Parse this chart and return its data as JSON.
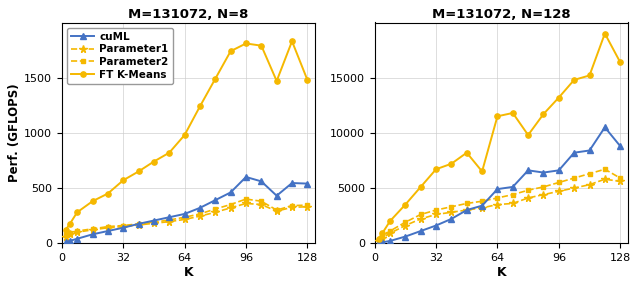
{
  "title_left": "M=131072, N=8",
  "title_right": "M=131072, N=128",
  "xlabel": "K",
  "ylabel": "Perf. (GFLOPS)",
  "k_values": [
    2,
    4,
    8,
    16,
    24,
    32,
    40,
    48,
    56,
    64,
    72,
    80,
    88,
    96,
    104,
    112,
    120,
    128
  ],
  "left": {
    "cuML": [
      10,
      20,
      40,
      80,
      110,
      140,
      175,
      205,
      235,
      265,
      320,
      390,
      460,
      600,
      560,
      430,
      545,
      540
    ],
    "Param1": [
      60,
      80,
      100,
      120,
      140,
      150,
      165,
      180,
      195,
      215,
      245,
      280,
      320,
      360,
      350,
      290,
      325,
      330
    ],
    "Param2": [
      70,
      90,
      110,
      130,
      150,
      160,
      175,
      190,
      210,
      235,
      265,
      310,
      350,
      400,
      380,
      300,
      340,
      345
    ],
    "FTKMeans": [
      120,
      170,
      280,
      380,
      450,
      570,
      650,
      740,
      820,
      980,
      1240,
      1490,
      1740,
      1810,
      1790,
      1470,
      1830,
      1480
    ]
  },
  "right": {
    "cuML": [
      30,
      80,
      200,
      600,
      1100,
      1600,
      2200,
      3000,
      3400,
      4900,
      5100,
      6600,
      6400,
      6600,
      8200,
      8400,
      10500,
      8800
    ],
    "Param1": [
      200,
      450,
      900,
      1600,
      2200,
      2600,
      2800,
      3000,
      3200,
      3500,
      3600,
      4100,
      4400,
      4700,
      5000,
      5300,
      5800,
      5600
    ],
    "Param2": [
      300,
      600,
      1100,
      1900,
      2600,
      3000,
      3300,
      3600,
      3800,
      4100,
      4400,
      4800,
      5100,
      5500,
      5900,
      6300,
      6700,
      5900
    ],
    "FTKMeans": [
      400,
      900,
      2000,
      3500,
      5100,
      6700,
      7200,
      8200,
      6500,
      11500,
      11800,
      9800,
      11700,
      13200,
      14800,
      15200,
      19000,
      16400
    ]
  },
  "cuml_color": "#4472c4",
  "param1_color": "#f5b800",
  "param2_color": "#f5b800",
  "ftk_color": "#f5b800",
  "left_ylim": [
    0,
    2000
  ],
  "right_ylim": [
    0,
    20000
  ],
  "left_yticks": [
    0,
    500,
    1000,
    1500
  ],
  "right_yticks": [
    0,
    5000,
    10000,
    15000
  ],
  "xticks": [
    0,
    32,
    64,
    96,
    128
  ],
  "xlim": [
    0,
    132
  ]
}
